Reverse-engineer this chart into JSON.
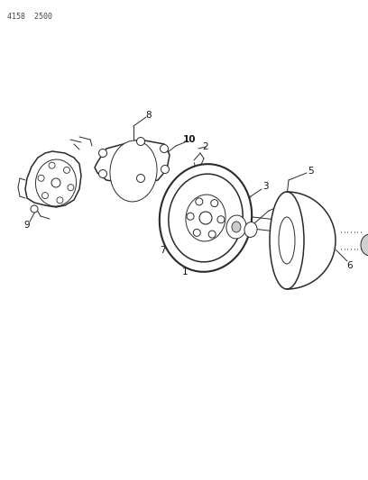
{
  "title_text": "4158  2500",
  "bg_color": "#ffffff",
  "line_color": "#2a2a2a",
  "label_color": "#111111",
  "figsize": [
    4.08,
    5.33
  ],
  "dpi": 100
}
